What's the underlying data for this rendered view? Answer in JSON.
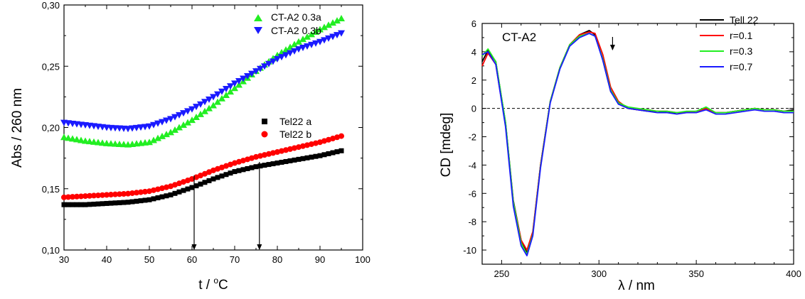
{
  "chart_data": [
    {
      "type": "scatter",
      "xlabel_main": "t / ",
      "xlabel_sup": "o",
      "xlabel_unit": "C",
      "ylabel": "Abs / 260 nm",
      "xlim": [
        30,
        100
      ],
      "ylim": [
        0.1,
        0.3
      ],
      "x_ticks": [
        "30",
        "40",
        "50",
        "60",
        "70",
        "80",
        "90",
        "100"
      ],
      "y_ticks": [
        "0,10",
        "0,15",
        "0,20",
        "0,25",
        "0,30"
      ],
      "legend_top": [
        "CT-A2 0.3a",
        "CT-A2 0.3b"
      ],
      "legend_mid": [
        "Tel22 a",
        "Tel22 b"
      ],
      "markers": {
        "s1": "triangle-up",
        "s2": "triangle-down",
        "s3": "square",
        "s4": "circle"
      },
      "colors": {
        "s1": "#22ee22",
        "s2": "#1a1aff",
        "s3": "#000000",
        "s4": "#ff0000"
      },
      "annotations": [
        {
          "type": "arrow-down",
          "x": 60.5
        },
        {
          "type": "arrow-down",
          "x": 75.8
        }
      ],
      "series": [
        {
          "name": "CT-A2 0.3a",
          "x": [
            30,
            35,
            40,
            45,
            50,
            55,
            60,
            65,
            70,
            75,
            80,
            85,
            90,
            95
          ],
          "y": [
            0.192,
            0.189,
            0.187,
            0.186,
            0.188,
            0.196,
            0.206,
            0.218,
            0.232,
            0.246,
            0.259,
            0.27,
            0.28,
            0.289
          ]
        },
        {
          "name": "CT-A2 0.3b",
          "x": [
            30,
            35,
            40,
            45,
            50,
            55,
            60,
            65,
            70,
            75,
            80,
            85,
            90,
            95
          ],
          "y": [
            0.204,
            0.202,
            0.2,
            0.199,
            0.201,
            0.207,
            0.215,
            0.225,
            0.236,
            0.246,
            0.256,
            0.264,
            0.27,
            0.277
          ]
        },
        {
          "name": "Tel22 a",
          "x": [
            30,
            35,
            40,
            45,
            50,
            55,
            60,
            65,
            70,
            75,
            80,
            85,
            90,
            95
          ],
          "y": [
            0.137,
            0.137,
            0.138,
            0.139,
            0.141,
            0.145,
            0.151,
            0.158,
            0.164,
            0.168,
            0.171,
            0.174,
            0.177,
            0.181
          ]
        },
        {
          "name": "Tel22 b",
          "x": [
            30,
            35,
            40,
            45,
            50,
            55,
            60,
            65,
            70,
            75,
            80,
            85,
            90,
            95
          ],
          "y": [
            0.143,
            0.144,
            0.145,
            0.146,
            0.148,
            0.152,
            0.158,
            0.165,
            0.171,
            0.176,
            0.18,
            0.184,
            0.188,
            0.193
          ]
        }
      ]
    },
    {
      "type": "line",
      "panel_label": "CT-A2",
      "xlabel": "λ / nm",
      "ylabel": "CD [mdeg]",
      "xlim": [
        240,
        400
      ],
      "ylim": [
        -11,
        6
      ],
      "x_ticks": [
        "250",
        "300",
        "350",
        "400"
      ],
      "y_ticks": [
        "-10",
        "-8",
        "-6",
        "-4",
        "-2",
        "0",
        "2",
        "4",
        "6"
      ],
      "zero_line": "dashed",
      "annotations": [
        {
          "type": "arrow-down",
          "x": 307
        }
      ],
      "legend": [
        "Tell 22",
        "r=0.1",
        "r=0.3",
        "r=0.7"
      ],
      "colors": [
        "#000000",
        "#ff0000",
        "#22ee22",
        "#1a1aff"
      ],
      "x": [
        240,
        243,
        247,
        252,
        256,
        260,
        263,
        266,
        270,
        275,
        280,
        285,
        290,
        295,
        298,
        302,
        306,
        310,
        315,
        320,
        325,
        330,
        335,
        340,
        345,
        350,
        355,
        360,
        365,
        370,
        375,
        380,
        385,
        390,
        395,
        400
      ],
      "series": [
        {
          "name": "Tell 22",
          "y": [
            3.3,
            4.1,
            3.3,
            -1.0,
            -6.5,
            -9.3,
            -10.2,
            -8.8,
            -4.0,
            0.5,
            2.9,
            4.5,
            5.2,
            5.5,
            5.2,
            3.4,
            1.2,
            0.4,
            0.0,
            -0.1,
            -0.2,
            -0.2,
            -0.3,
            -0.3,
            -0.3,
            -0.2,
            0.0,
            -0.3,
            -0.3,
            -0.2,
            -0.1,
            0.0,
            -0.1,
            -0.1,
            -0.2,
            -0.1
          ]
        },
        {
          "name": "r=0.1",
          "y": [
            3.0,
            3.9,
            3.1,
            -1.2,
            -6.6,
            -9.3,
            -10.0,
            -8.7,
            -4.0,
            0.5,
            2.9,
            4.5,
            5.2,
            5.4,
            5.3,
            3.8,
            1.5,
            0.5,
            0.0,
            -0.1,
            -0.1,
            -0.2,
            -0.2,
            -0.3,
            -0.3,
            -0.2,
            0.0,
            -0.3,
            -0.3,
            -0.2,
            -0.1,
            0.0,
            -0.1,
            -0.1,
            -0.2,
            -0.2
          ]
        },
        {
          "name": "r=0.3",
          "y": [
            3.7,
            4.2,
            3.3,
            -1.0,
            -6.6,
            -9.5,
            -10.3,
            -8.9,
            -4.1,
            0.5,
            2.9,
            4.5,
            5.1,
            5.3,
            5.1,
            3.5,
            1.3,
            0.4,
            0.1,
            0.0,
            -0.1,
            -0.2,
            -0.2,
            -0.3,
            -0.2,
            -0.2,
            0.1,
            -0.3,
            -0.3,
            -0.2,
            -0.1,
            0.0,
            -0.1,
            -0.1,
            -0.2,
            -0.2
          ]
        },
        {
          "name": "r=0.7",
          "y": [
            3.8,
            4.0,
            3.1,
            -1.3,
            -6.9,
            -9.7,
            -10.4,
            -9.0,
            -4.2,
            0.4,
            2.8,
            4.4,
            5.0,
            5.3,
            5.1,
            3.4,
            1.2,
            0.3,
            0.0,
            -0.1,
            -0.2,
            -0.3,
            -0.3,
            -0.4,
            -0.3,
            -0.3,
            -0.1,
            -0.4,
            -0.4,
            -0.3,
            -0.2,
            -0.1,
            -0.2,
            -0.2,
            -0.3,
            -0.3
          ]
        }
      ]
    }
  ]
}
